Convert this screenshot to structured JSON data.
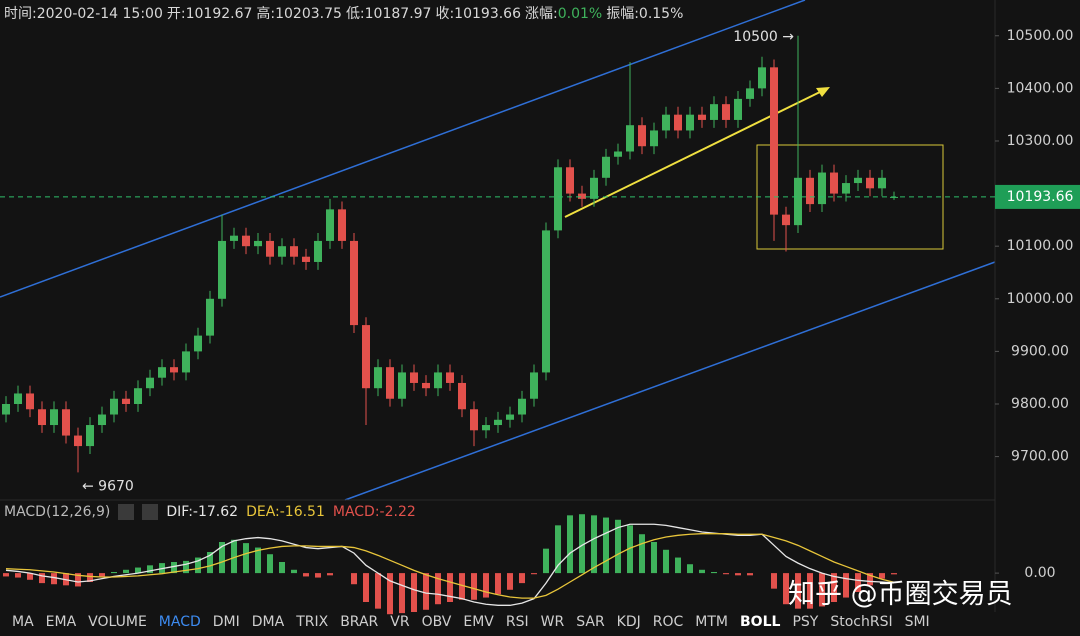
{
  "header": {
    "items": [
      "时间:2020-02-14 15:00",
      "开:10192.67",
      "高:10203.75",
      "低:10187.97",
      "收:10193.66"
    ],
    "change_label": "涨幅:",
    "change_value": "0.01%",
    "amplitude": "振幅:0.15%"
  },
  "chart_data": [
    {
      "type": "candlestick",
      "open": [
        9780,
        9800,
        9820,
        9790,
        9760,
        9790,
        9740,
        9720,
        9760,
        9780,
        9810,
        9800,
        9830,
        9850,
        9870,
        9860,
        9900,
        9930,
        10000,
        10110,
        10120,
        10100,
        10110,
        10080,
        10100,
        10080,
        10070,
        10110,
        10170,
        10110,
        9950,
        9830,
        9870,
        9810,
        9860,
        9840,
        9830,
        9860,
        9840,
        9790,
        9750,
        9760,
        9770,
        9780,
        9810,
        9860,
        10130,
        10250,
        10200,
        10190,
        10230,
        10270,
        10280,
        10330,
        10290,
        10320,
        10350,
        10320,
        10350,
        10340,
        10370,
        10340,
        10380,
        10400,
        10440,
        10160,
        10140,
        10230,
        10180,
        10240,
        10200,
        10220,
        10230,
        10210,
        10192.67
      ],
      "high": [
        9815,
        9835,
        9835,
        9805,
        9805,
        9805,
        9755,
        9775,
        9795,
        9825,
        9825,
        9845,
        9865,
        9885,
        9885,
        9915,
        9945,
        10015,
        10160,
        10135,
        10135,
        10125,
        10125,
        10115,
        10115,
        10095,
        10125,
        10190,
        10185,
        10125,
        9965,
        9885,
        9885,
        9875,
        9875,
        9855,
        9875,
        9875,
        9855,
        9805,
        9775,
        9785,
        9795,
        9825,
        9875,
        10145,
        10265,
        10265,
        10215,
        10245,
        10285,
        10295,
        10450,
        10345,
        10335,
        10365,
        10365,
        10365,
        10365,
        10385,
        10385,
        10395,
        10415,
        10460,
        10455,
        10175,
        10500,
        10245,
        10255,
        10255,
        10235,
        10245,
        10245,
        10245,
        10203.75
      ],
      "low": [
        9765,
        9785,
        9775,
        9745,
        9745,
        9725,
        9670,
        9705,
        9745,
        9765,
        9785,
        9785,
        9815,
        9835,
        9845,
        9845,
        9885,
        9915,
        9985,
        10095,
        10085,
        10085,
        10065,
        10065,
        10065,
        10055,
        10055,
        10095,
        10095,
        9935,
        9760,
        9815,
        9795,
        9795,
        9825,
        9815,
        9815,
        9825,
        9775,
        9720,
        9735,
        9745,
        9755,
        9765,
        9795,
        9845,
        10115,
        10185,
        10175,
        10175,
        10215,
        10255,
        10265,
        10275,
        10275,
        10305,
        10305,
        10305,
        10325,
        10325,
        10325,
        10325,
        10365,
        10385,
        10110,
        10090,
        10125,
        10165,
        10165,
        10185,
        10185,
        10205,
        10195,
        10195,
        10187.97
      ],
      "close": [
        9800,
        9820,
        9790,
        9760,
        9790,
        9740,
        9720,
        9760,
        9780,
        9810,
        9800,
        9830,
        9850,
        9870,
        9860,
        9900,
        9930,
        10000,
        10110,
        10120,
        10100,
        10110,
        10080,
        10100,
        10080,
        10070,
        10110,
        10170,
        10110,
        9950,
        9830,
        9870,
        9810,
        9860,
        9840,
        9830,
        9860,
        9840,
        9790,
        9750,
        9760,
        9770,
        9780,
        9810,
        9860,
        10130,
        10250,
        10200,
        10190,
        10230,
        10270,
        10280,
        10330,
        10290,
        10320,
        10350,
        10320,
        10350,
        10340,
        10370,
        10340,
        10380,
        10400,
        10440,
        10160,
        10140,
        10230,
        10180,
        10240,
        10200,
        10220,
        10230,
        10210,
        10230,
        10193.66
      ],
      "up_color": "#3fb25c",
      "down_color": "#e2514c",
      "ylim": [
        9627,
        10568
      ],
      "yticks": [
        {
          "value": 9700,
          "label": "9700.00"
        },
        {
          "value": 9800,
          "label": "9800.00"
        },
        {
          "value": 9900,
          "label": "9900.00"
        },
        {
          "value": 10000,
          "label": "10000.00"
        },
        {
          "value": 10100,
          "label": "10100.00"
        },
        {
          "value": 10200,
          "label": "10200.00"
        },
        {
          "value": 10300,
          "label": "10300.00"
        },
        {
          "value": 10400,
          "label": "10400.00"
        },
        {
          "value": 10500,
          "label": "10500.00"
        }
      ],
      "last_price": {
        "value": 10193.66,
        "label": "10193.66"
      },
      "annotations": [
        {
          "text": "10500 →",
          "index": 66,
          "value": 10500
        },
        {
          "text": "← 9670",
          "index": 6,
          "value": 9670
        }
      ]
    },
    {
      "type": "macd",
      "title": "MACD(12,26,9)",
      "dif_label": "DIF:-17.62",
      "dea_label": "DEA:-16.51",
      "macd_label": "MACD:-2.22",
      "series": [
        {
          "name": "DIF",
          "color": "#e6e6e6",
          "values": [
            5,
            3,
            0,
            -5,
            -8,
            -12,
            -16,
            -14,
            -10,
            -6,
            -3,
            0,
            4,
            8,
            12,
            16,
            22,
            32,
            48,
            58,
            62,
            64,
            62,
            58,
            52,
            46,
            44,
            46,
            48,
            36,
            14,
            0,
            -14,
            -22,
            -30,
            -36,
            -38,
            -42,
            -46,
            -52,
            -56,
            -58,
            -58,
            -54,
            -46,
            -18,
            14,
            36,
            50,
            62,
            72,
            82,
            88,
            88,
            88,
            86,
            82,
            78,
            74,
            72,
            70,
            68,
            68,
            70,
            50,
            30,
            18,
            8,
            0,
            -6,
            -10,
            -13,
            -15,
            -16,
            -17.62
          ]
        },
        {
          "name": "DEA",
          "color": "#e8c53a",
          "values": [
            8,
            7,
            6,
            4,
            2,
            -1,
            -4,
            -6,
            -7,
            -7,
            -6,
            -5,
            -3,
            -1,
            2,
            5,
            8,
            13,
            20,
            28,
            35,
            41,
            45,
            48,
            49,
            49,
            48,
            48,
            48,
            46,
            40,
            32,
            23,
            14,
            5,
            -3,
            -10,
            -16,
            -22,
            -28,
            -34,
            -39,
            -43,
            -45,
            -45,
            -40,
            -29,
            -16,
            -3,
            10,
            22,
            34,
            45,
            53,
            60,
            65,
            68,
            70,
            71,
            71,
            71,
            70,
            70,
            70,
            64,
            58,
            50,
            40,
            30,
            20,
            12,
            4,
            -4,
            -11,
            -16.51
          ]
        }
      ],
      "histogram": [
        -6,
        -8,
        -12,
        -18,
        -20,
        -22,
        -24,
        -16,
        -6,
        2,
        6,
        10,
        14,
        18,
        20,
        22,
        28,
        38,
        56,
        60,
        54,
        46,
        34,
        20,
        6,
        -6,
        -8,
        -4,
        0,
        -20,
        -52,
        -64,
        -74,
        -72,
        -70,
        -66,
        -56,
        -52,
        -48,
        -48,
        -44,
        -38,
        -30,
        -18,
        -2,
        44,
        86,
        104,
        106,
        104,
        100,
        96,
        86,
        70,
        56,
        42,
        28,
        16,
        6,
        2,
        -2,
        -4,
        -4,
        0,
        -28,
        -56,
        -64,
        -64,
        -60,
        -52,
        -44,
        -34,
        -22,
        -10,
        -2.22
      ],
      "ylim": [
        -70,
        110
      ],
      "yticks": [
        {
          "value": 0,
          "label": "0.00"
        }
      ]
    }
  ],
  "tabs": [
    "MA",
    "EMA",
    "VOLUME",
    "MACD",
    "DMI",
    "DMA",
    "TRIX",
    "BRAR",
    "VR",
    "OBV",
    "EMV",
    "RSI",
    "WR",
    "SAR",
    "KDJ",
    "ROC",
    "MTM",
    "BOLL",
    "PSY",
    "StochRSI",
    "SMI"
  ],
  "active_tab": 3,
  "selected_tab": 17,
  "watermark": "知乎 @币圈交易员"
}
